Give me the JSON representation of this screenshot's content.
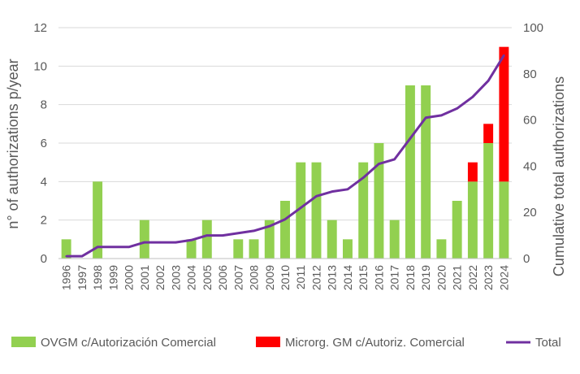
{
  "chart_data": {
    "type": "bar",
    "stacked": true,
    "categories": [
      "1996",
      "1997",
      "1998",
      "1999",
      "2000",
      "2001",
      "2002",
      "2003",
      "2004",
      "2005",
      "2006",
      "2007",
      "2008",
      "2009",
      "2010",
      "2011",
      "2012",
      "2013",
      "2014",
      "2015",
      "2016",
      "2017",
      "2018",
      "2019",
      "2020",
      "2021",
      "2022",
      "2023",
      "2024"
    ],
    "series": [
      {
        "name": "OVGM c/Autorización Comercial",
        "type": "bar",
        "axis": "left",
        "color": "#92d050",
        "values": [
          1,
          0,
          4,
          0,
          0,
          2,
          0,
          0,
          1,
          2,
          0,
          1,
          1,
          2,
          3,
          5,
          5,
          2,
          1,
          5,
          6,
          2,
          9,
          9,
          1,
          3,
          4,
          6,
          4
        ]
      },
      {
        "name": "Microrg. GM c/Autoriz. Comercial",
        "type": "bar",
        "axis": "left",
        "color": "#ff0000",
        "values": [
          0,
          0,
          0,
          0,
          0,
          0,
          0,
          0,
          0,
          0,
          0,
          0,
          0,
          0,
          0,
          0,
          0,
          0,
          0,
          0,
          0,
          0,
          0,
          0,
          0,
          0,
          1,
          1,
          7
        ]
      },
      {
        "name": "Total",
        "type": "line",
        "axis": "right",
        "color": "#7030a0",
        "values": [
          1,
          1,
          5,
          5,
          5,
          7,
          7,
          7,
          8,
          10,
          10,
          11,
          12,
          14,
          17,
          22,
          27,
          29,
          30,
          35,
          41,
          43,
          52,
          61,
          62,
          65,
          70,
          77,
          88
        ]
      }
    ],
    "ylabel": "n° of authorizations p/year",
    "y2label": "Cumulative total authorizations",
    "ylim": [
      0,
      12
    ],
    "y2lim": [
      0,
      100
    ],
    "yticks": [
      0,
      2,
      4,
      6,
      8,
      10,
      12
    ],
    "y2ticks": [
      0,
      20,
      40,
      60,
      80,
      100
    ],
    "grid": true,
    "legend_position": "bottom"
  }
}
